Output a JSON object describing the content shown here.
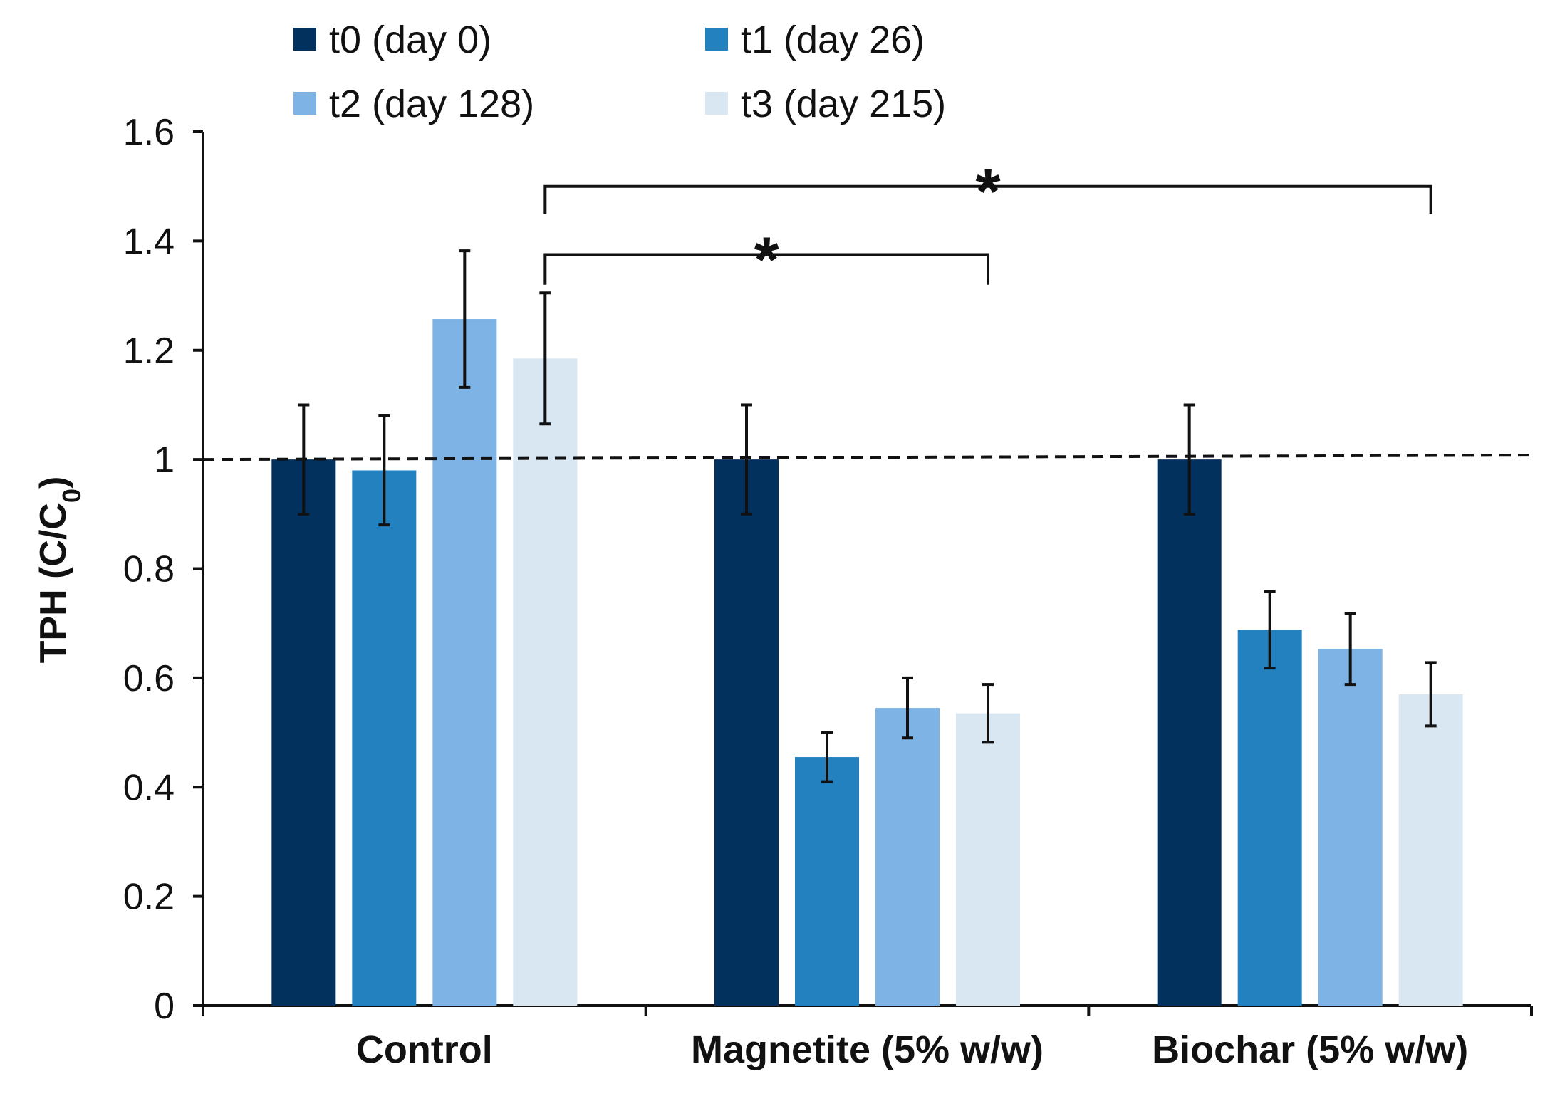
{
  "chart_data": {
    "type": "bar",
    "title": "",
    "xlabel": "",
    "ylabel": "TPH (C/C",
    "ylabel_subscript": "0",
    "ylabel_suffix": ")",
    "ylim": [
      0,
      1.6
    ],
    "yticks": [
      0,
      0.2,
      0.4,
      0.6,
      0.8,
      1,
      1.2,
      1.4,
      1.6
    ],
    "ytick_labels": [
      "0",
      "0.2",
      "0.4",
      "0.6",
      "0.8",
      "1",
      "1.2",
      "1.4",
      "1.6"
    ],
    "categories": [
      "Control",
      "Magnetite (5% w/w)",
      "Biochar (5% w/w)"
    ],
    "series": [
      {
        "name": "t0 (day 0)",
        "color": "#02315d",
        "values": [
          1.0,
          1.0,
          1.0
        ],
        "errors": [
          0.1,
          0.1,
          0.1
        ]
      },
      {
        "name": "t1 (day 26)",
        "color": "#2381c0",
        "values": [
          0.98,
          0.455,
          0.688
        ],
        "errors": [
          0.1,
          0.045,
          0.07
        ]
      },
      {
        "name": "t2 (day 128)",
        "color": "#7eb4e5",
        "values": [
          1.257,
          0.545,
          0.653
        ],
        "errors": [
          0.125,
          0.055,
          0.065
        ]
      },
      {
        "name": "t3 (day 215)",
        "color": "#d9e7f3",
        "values": [
          1.185,
          0.535,
          0.57
        ],
        "errors": [
          0.12,
          0.053,
          0.058
        ]
      }
    ],
    "reference_line": {
      "y": 1,
      "style": "dashed"
    },
    "legend_position": "top",
    "significance": [
      {
        "label": "*",
        "from": {
          "category": "Control",
          "series": "t3 (day 215)"
        },
        "to": {
          "category": "Magnetite (5% w/w)",
          "series": "t3 (day 215)"
        }
      },
      {
        "label": "*",
        "from": {
          "category": "Control",
          "series": "t3 (day 215)"
        },
        "to": {
          "category": "Biochar (5% w/w)",
          "series": "t3 (day 215)"
        }
      }
    ]
  }
}
